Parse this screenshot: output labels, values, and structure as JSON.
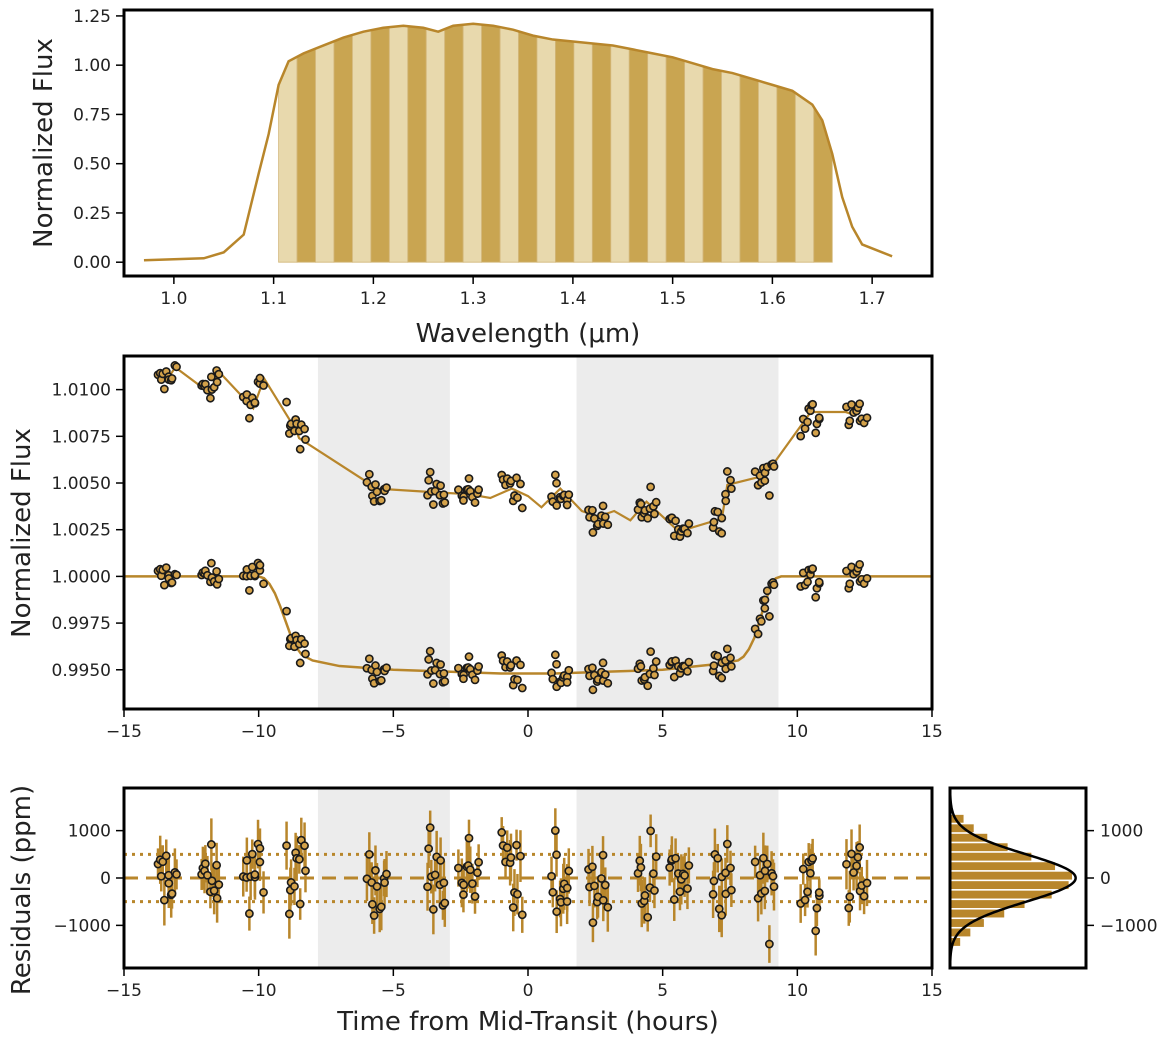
{
  "chart_data": [
    {
      "type": "area",
      "panel": "filter-throughput",
      "xlabel": "Wavelength (μm)",
      "ylabel": "Normalized Flux",
      "xlim": [
        0.95,
        1.76
      ],
      "ylim": [
        -0.07,
        1.28
      ],
      "xticks": [
        1.0,
        1.1,
        1.2,
        1.3,
        1.4,
        1.5,
        1.6,
        1.7
      ],
      "xtick_labels": [
        "1.0",
        "1.1",
        "1.2",
        "1.3",
        "1.4",
        "1.5",
        "1.6",
        "1.7"
      ],
      "yticks": [
        0.0,
        0.25,
        0.5,
        0.75,
        1.0,
        1.25
      ],
      "ytick_labels": [
        "0.00",
        "0.25",
        "0.50",
        "0.75",
        "1.00",
        "1.25"
      ],
      "curve": {
        "x": [
          0.97,
          1.0,
          1.03,
          1.05,
          1.07,
          1.085,
          1.095,
          1.105,
          1.115,
          1.13,
          1.15,
          1.17,
          1.19,
          1.21,
          1.23,
          1.25,
          1.265,
          1.28,
          1.3,
          1.32,
          1.34,
          1.36,
          1.38,
          1.4,
          1.42,
          1.44,
          1.46,
          1.48,
          1.5,
          1.52,
          1.54,
          1.56,
          1.58,
          1.6,
          1.62,
          1.64,
          1.65,
          1.66,
          1.67,
          1.68,
          1.69,
          1.72
        ],
        "y": [
          0.01,
          0.015,
          0.02,
          0.05,
          0.14,
          0.45,
          0.65,
          0.9,
          1.02,
          1.06,
          1.1,
          1.14,
          1.17,
          1.19,
          1.2,
          1.19,
          1.17,
          1.2,
          1.21,
          1.2,
          1.18,
          1.15,
          1.13,
          1.12,
          1.11,
          1.1,
          1.08,
          1.06,
          1.04,
          1.01,
          0.98,
          0.96,
          0.93,
          0.9,
          0.87,
          0.8,
          0.72,
          0.55,
          0.33,
          0.18,
          0.09,
          0.03
        ]
      },
      "bins": {
        "edges": [
          1.105,
          1.1235,
          1.142,
          1.1605,
          1.179,
          1.1975,
          1.216,
          1.2345,
          1.253,
          1.2715,
          1.29,
          1.3085,
          1.327,
          1.3455,
          1.364,
          1.3825,
          1.401,
          1.4195,
          1.438,
          1.4565,
          1.475,
          1.4935,
          1.512,
          1.5305,
          1.549,
          1.5675,
          1.586,
          1.6045,
          1.623,
          1.6415,
          1.66
        ],
        "colors": [
          "#e8d9ad",
          "#c9a551"
        ]
      },
      "color": "#b8862b"
    },
    {
      "type": "scatter",
      "panel": "light-curves",
      "xlabel": "",
      "ylabel": "Normalized Flux",
      "xlim": [
        -15,
        15
      ],
      "ylim": [
        0.9929,
        1.0118
      ],
      "xticks": [
        -15,
        -10,
        -5,
        0,
        5,
        10,
        15
      ],
      "xtick_labels": [
        "−15",
        "−10",
        "−5",
        "0",
        "5",
        "10",
        "15"
      ],
      "yticks": [
        0.995,
        0.9975,
        1.0,
        1.0025,
        1.005,
        1.0075,
        1.01
      ],
      "ytick_labels": [
        "0.9950",
        "0.9975",
        "1.0000",
        "1.0025",
        "1.0050",
        "1.0075",
        "1.0100"
      ],
      "shaded_regions": [
        [
          -7.8,
          -2.9
        ],
        [
          1.8,
          9.3
        ]
      ],
      "orbit_times": [
        -13.4,
        -11.8,
        -10.2,
        -8.6,
        -5.6,
        -3.4,
        -2.2,
        -0.6,
        1.2,
        2.6,
        4.4,
        5.6,
        7.2,
        8.8,
        10.5,
        12.2
      ],
      "raw_flux": {
        "x": [
          -13.4,
          -13.1,
          -11.8,
          -11.5,
          -10.2,
          -9.8,
          -8.6,
          -8.5,
          -5.6,
          -3.4,
          -2.2,
          -1.4,
          -0.6,
          0.0,
          0.5,
          1.2,
          2.0,
          2.6,
          3.2,
          3.8,
          4.4,
          5.6,
          7.2,
          7.4,
          8.8,
          10.5,
          11.8,
          12.2
        ],
        "y": [
          1.0105,
          1.0112,
          1.0098,
          1.011,
          1.009,
          1.0106,
          1.0078,
          1.0074,
          1.0047,
          1.0045,
          1.0044,
          1.0042,
          1.0047,
          1.0043,
          1.0037,
          1.0047,
          1.0035,
          1.0032,
          1.0035,
          1.003,
          1.004,
          1.0024,
          1.0031,
          1.0049,
          1.0054,
          1.0088,
          1.0088,
          1.0086
        ]
      },
      "model": {
        "x": [
          -15,
          -10.0,
          -9.8,
          -9.6,
          -9.4,
          -9.2,
          -9.0,
          -8.8,
          -8.6,
          -8.4,
          -8.0,
          -7.0,
          -5.0,
          -3.0,
          -1.0,
          0.0,
          1.0,
          3.0,
          5.0,
          7.0,
          7.8,
          8.0,
          8.2,
          8.4,
          8.6,
          8.8,
          9.0,
          9.2,
          9.4,
          15
        ],
        "y": [
          1.0,
          1.0,
          0.9999,
          0.9996,
          0.9991,
          0.9984,
          0.9976,
          0.9968,
          0.9962,
          0.9958,
          0.9955,
          0.9952,
          0.995,
          0.9949,
          0.9948,
          0.9948,
          0.9948,
          0.9949,
          0.995,
          0.9953,
          0.9955,
          0.9957,
          0.9961,
          0.9967,
          0.9976,
          0.9986,
          0.9994,
          0.9999,
          1.0,
          1.0
        ]
      },
      "marker_color": "#d4a24a",
      "line_color": "#b8862b"
    },
    {
      "type": "scatter",
      "panel": "residuals",
      "xlabel": "Time from Mid-Transit (hours)",
      "ylabel": "Residuals (ppm)",
      "xlim": [
        -15,
        15
      ],
      "ylim": [
        -1900,
        1900
      ],
      "xticks": [
        -15,
        -10,
        -5,
        0,
        5,
        10,
        15
      ],
      "xtick_labels": [
        "−15",
        "−10",
        "−5",
        "0",
        "5",
        "10",
        "15"
      ],
      "yticks": [
        -1000,
        0,
        1000
      ],
      "ytick_labels": [
        "−1000",
        "0",
        "1000"
      ],
      "reference_lines": {
        "zero": 0,
        "sigma": [
          -500,
          500
        ]
      },
      "shaded_regions": [
        [
          -7.8,
          -2.9
        ],
        [
          1.8,
          9.3
        ]
      ],
      "orbit_times": [
        -13.4,
        -11.8,
        -10.2,
        -8.6,
        -5.6,
        -3.4,
        -2.2,
        -0.6,
        1.2,
        2.6,
        4.4,
        5.6,
        7.2,
        8.8,
        10.5,
        12.2
      ],
      "color": "#b8862b"
    },
    {
      "type": "bar",
      "panel": "residual-histogram",
      "orientation": "horizontal",
      "ylim": [
        -1900,
        1900
      ],
      "yticks": [
        -1000,
        0,
        1000
      ],
      "ytick_labels": [
        "−1000",
        "0",
        "1000"
      ],
      "bin_centers": [
        -1350,
        -1150,
        -950,
        -750,
        -550,
        -350,
        -150,
        50,
        250,
        450,
        650,
        850,
        1050,
        1250
      ],
      "counts": [
        3,
        6,
        10,
        16,
        22,
        30,
        35,
        36,
        31,
        24,
        17,
        11,
        7,
        4
      ],
      "gaussian_sigma": 500,
      "color": "#b8862b"
    }
  ]
}
